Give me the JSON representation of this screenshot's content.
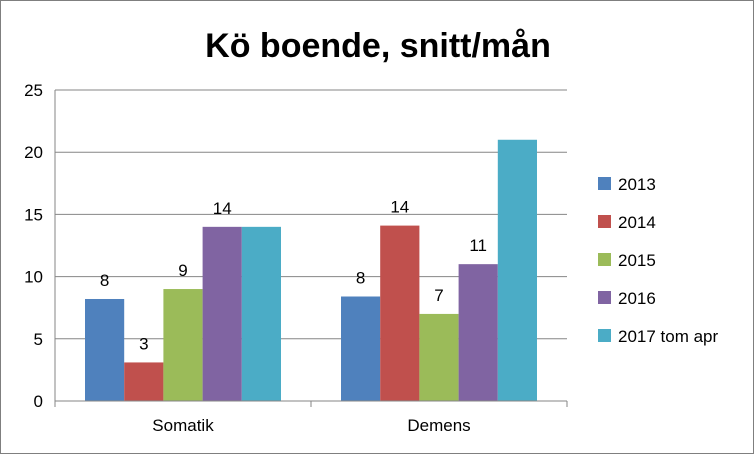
{
  "chart_data": {
    "type": "bar",
    "title": "Kö boende, snitt/mån",
    "xlabel": "",
    "ylabel": "",
    "categories": [
      "Somatik",
      "Demens"
    ],
    "ylim": [
      0,
      25
    ],
    "yticks": [
      0,
      5,
      10,
      15,
      20,
      25
    ],
    "grid": true,
    "legend_position": "right",
    "series": [
      {
        "name": "2013",
        "color": "#4f81bd",
        "values": [
          8.2,
          8.4
        ],
        "labels": [
          "8",
          "8"
        ]
      },
      {
        "name": "2014",
        "color": "#c0504d",
        "values": [
          3.1,
          14.1
        ],
        "labels": [
          "3",
          "14"
        ]
      },
      {
        "name": "2015",
        "color": "#9bbb59",
        "values": [
          9.0,
          7.0
        ],
        "labels": [
          "9",
          "7"
        ]
      },
      {
        "name": "2016",
        "color": "#8064a2",
        "values": [
          14.0,
          11.0
        ],
        "labels": [
          "14",
          "11"
        ]
      },
      {
        "name": "2017 tom apr",
        "color": "#4bacc6",
        "values": [
          14.0,
          21.0
        ],
        "labels": [
          "",
          ""
        ]
      }
    ]
  }
}
